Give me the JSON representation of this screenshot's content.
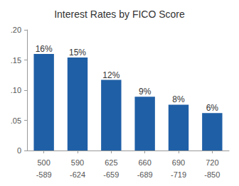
{
  "chart_data": {
    "type": "bar",
    "title": "Interest Rates by FICO Score",
    "categories": [
      "500\n-589",
      "590\n-624",
      "625\n-659",
      "660\n-689",
      "690\n-719",
      "720\n-850"
    ],
    "values": [
      0.16,
      0.154,
      0.117,
      0.089,
      0.076,
      0.062
    ],
    "value_labels": [
      "16%",
      "15%",
      "12%",
      "9%",
      "8%",
      "6%"
    ],
    "color": "#1f5fa6",
    "ylim": [
      0,
      0.2
    ],
    "yticks": [
      0,
      {
        "value": 0.05,
        "label": ".05"
      },
      {
        "value": 0.1,
        "label": ".10"
      },
      {
        "value": 0.15,
        "label": ".15"
      },
      {
        "value": 0.2,
        "label": ".20"
      }
    ],
    "grid": false,
    "data_labels": true
  }
}
